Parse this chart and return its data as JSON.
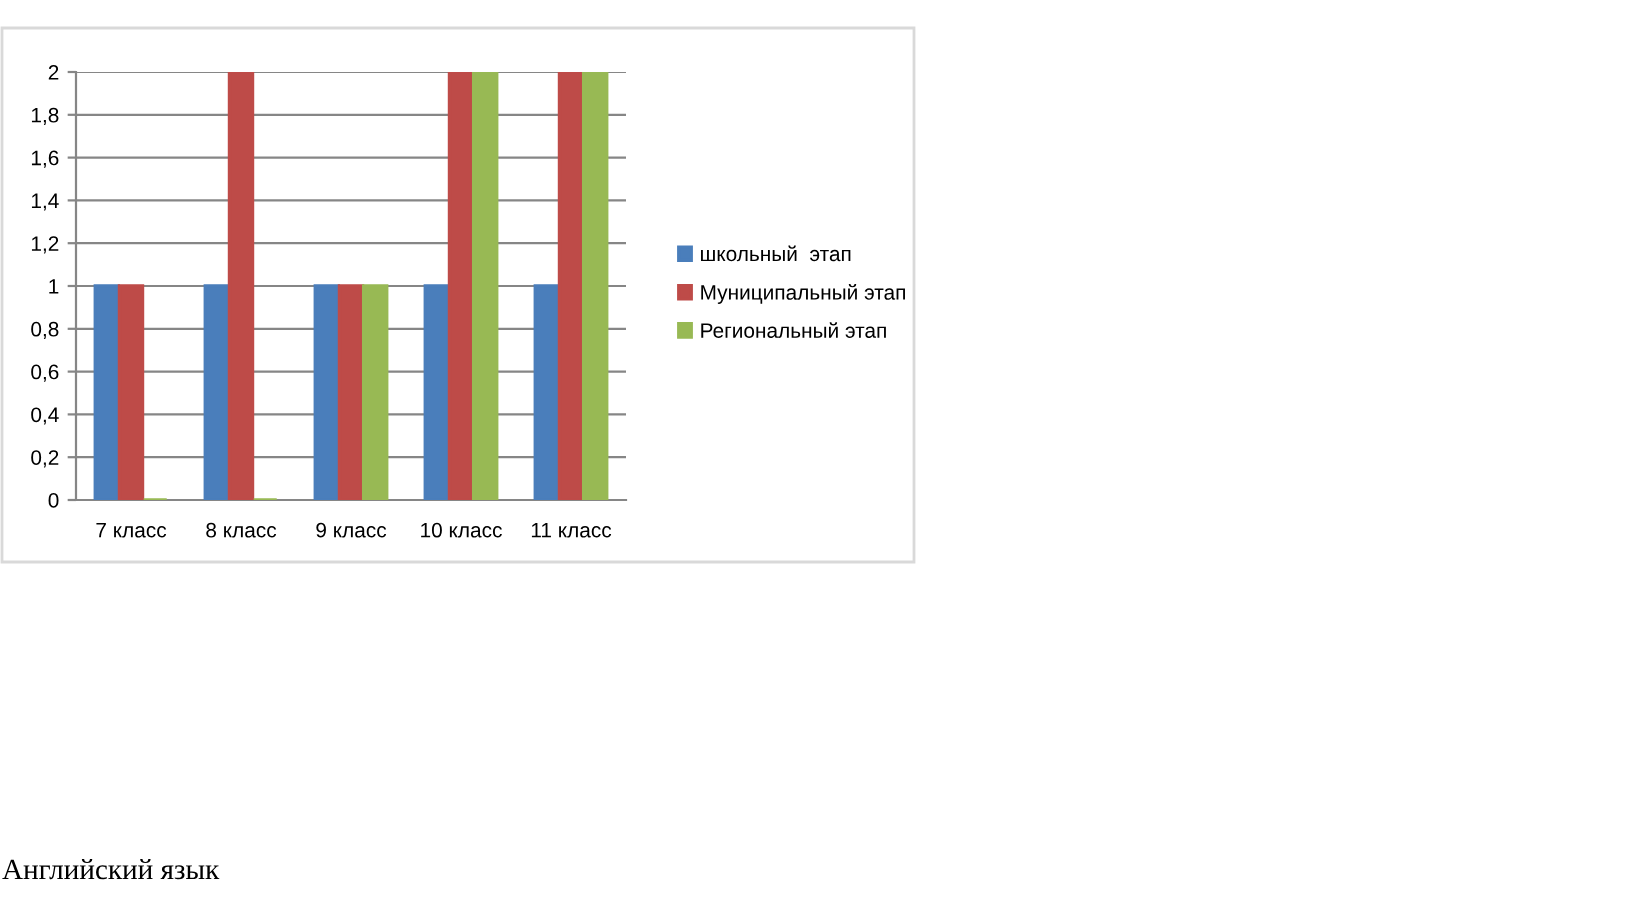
{
  "chart_data": {
    "type": "bar",
    "categories": [
      "7 класс",
      "8 класс",
      "9 класс",
      "10 класс",
      "11 класс"
    ],
    "series": [
      {
        "name": "школьный  этап",
        "color": "#4a7ebb",
        "values": [
          1,
          1,
          1,
          1,
          1
        ]
      },
      {
        "name": "Муниципальный этап",
        "color": "#be4b48",
        "values": [
          1,
          2,
          1,
          2,
          2
        ]
      },
      {
        "name": "Региональный этап",
        "color": "#98b954",
        "values": [
          0,
          0,
          1,
          2,
          2
        ]
      }
    ],
    "ylim": [
      0,
      2
    ],
    "yticks": [
      0,
      {
        "value": 0.2,
        "label": "0,2"
      },
      {
        "value": 0.4,
        "label": "0,4"
      },
      {
        "value": 0.6,
        "label": "0,6"
      },
      {
        "value": 0.8,
        "label": "0,8"
      },
      1,
      {
        "value": 1.2,
        "label": "1,2"
      },
      {
        "value": 1.4,
        "label": "1,4"
      },
      {
        "value": 1.6,
        "label": "1,6"
      },
      {
        "value": 1.8,
        "label": "1,8"
      },
      2
    ],
    "grid": "y",
    "legend": "right",
    "annotations": [
      "Английский язык"
    ]
  }
}
